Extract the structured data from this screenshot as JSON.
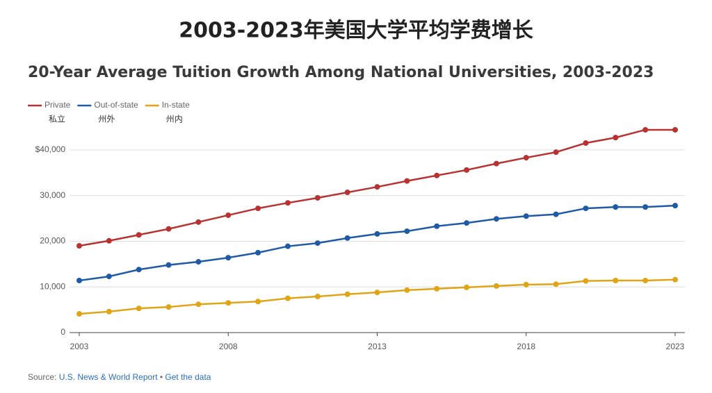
{
  "page_title": "2003-2023年美国大学平均学费增长",
  "chart_data": {
    "type": "line",
    "title": "20-Year Average Tuition Growth Among National Universities, 2003-2023",
    "x": [
      2003,
      2004,
      2005,
      2006,
      2007,
      2008,
      2009,
      2010,
      2011,
      2012,
      2013,
      2014,
      2015,
      2016,
      2017,
      2018,
      2019,
      2020,
      2021,
      2022,
      2023
    ],
    "xlim": [
      2003,
      2023
    ],
    "xticks": [
      2003,
      2008,
      2013,
      2018,
      2023
    ],
    "ylim": [
      0,
      45000
    ],
    "yticks": [
      0,
      {
        "value": 10000,
        "label": "10,000"
      },
      {
        "value": 20000,
        "label": "20,000"
      },
      {
        "value": 30000,
        "label": "30,000"
      },
      {
        "value": 40000,
        "label": "$40,000"
      }
    ],
    "grid": true,
    "legend": "top-left",
    "series": [
      {
        "name": "Private",
        "name_zh": "私立",
        "color": "#b83232",
        "values": [
          19000,
          20100,
          21400,
          22700,
          24200,
          25700,
          27200,
          28400,
          29500,
          30700,
          31900,
          33200,
          34400,
          35600,
          37000,
          38300,
          39500,
          41500,
          42700,
          44400,
          44400
        ]
      },
      {
        "name": "Out-of-state",
        "name_zh": "州外",
        "color": "#1f5aa6",
        "values": [
          11400,
          12300,
          13800,
          14800,
          15500,
          16400,
          17500,
          18900,
          19600,
          20700,
          21600,
          22200,
          23300,
          24000,
          24900,
          25500,
          25900,
          27200,
          27500,
          27500,
          27800
        ]
      },
      {
        "name": "In-state",
        "name_zh": "州内",
        "color": "#e0a417",
        "values": [
          4100,
          4600,
          5300,
          5600,
          6200,
          6500,
          6800,
          7500,
          7900,
          8400,
          8800,
          9300,
          9600,
          9900,
          10200,
          10500,
          10600,
          11300,
          11400,
          11400,
          11600
        ]
      }
    ]
  },
  "source": {
    "label": "Source:",
    "publisher": "U.S. News & World Report",
    "separator": "•",
    "link": "Get the data"
  }
}
